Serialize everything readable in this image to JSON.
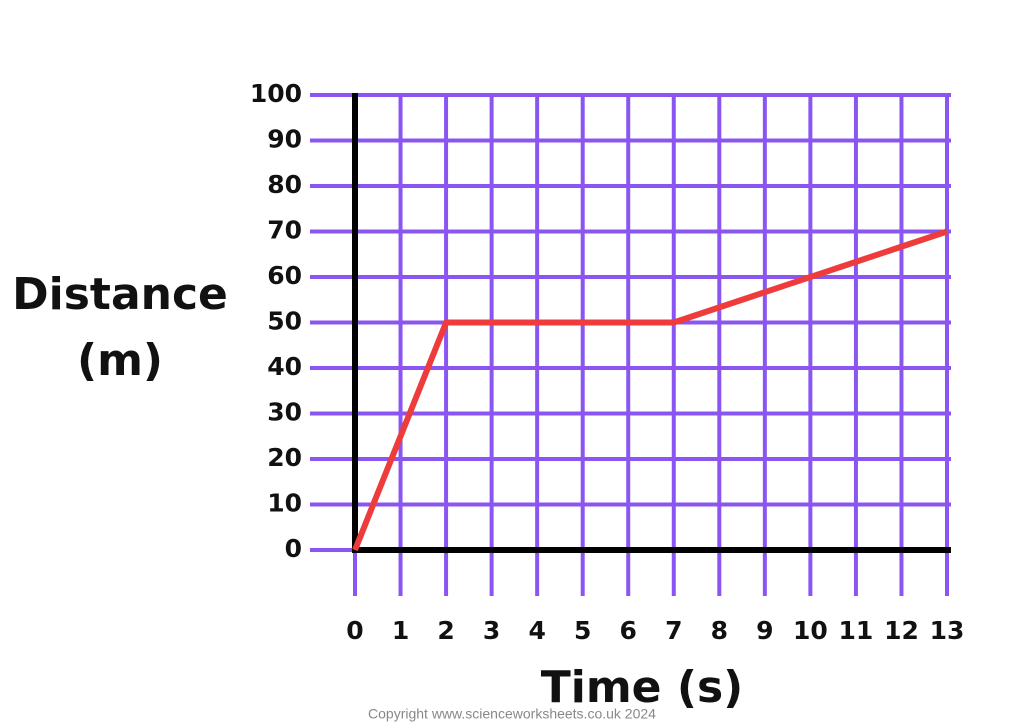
{
  "chart_data": {
    "type": "line",
    "xlabel": "Time (s)",
    "ylabel": "Distance (m)",
    "x": [
      0,
      2,
      7,
      13
    ],
    "values": [
      0,
      50,
      50,
      70
    ],
    "color": "#ee3b3b",
    "xlim": [
      0,
      13
    ],
    "xticks": [
      0,
      1,
      2,
      3,
      4,
      5,
      6,
      7,
      8,
      9,
      10,
      11,
      12,
      13
    ],
    "ylim": [
      0,
      100
    ],
    "yticks": [
      0,
      10,
      20,
      30,
      40,
      50,
      60,
      70,
      80,
      90,
      100
    ],
    "grid": true,
    "grid_color": "#8a55f0",
    "annotation": "Copyright www.scienceworksheets.co.uk 2024"
  }
}
